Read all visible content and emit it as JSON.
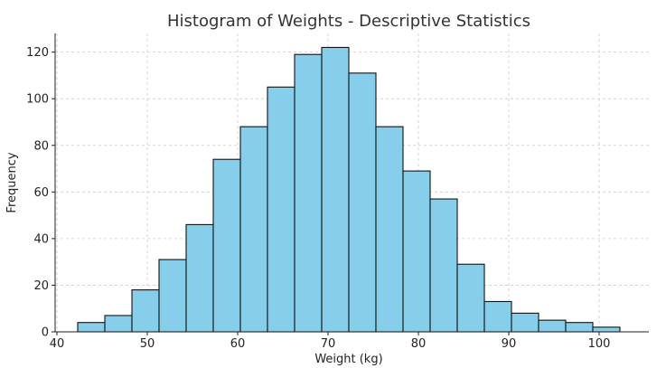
{
  "chart_data": {
    "type": "bar",
    "title": "Histogram of Weights - Descriptive Statistics",
    "xlabel": "Weight (kg)",
    "ylabel": "Frequency",
    "xlim": [
      39.8,
      105.5
    ],
    "ylim": [
      0,
      128
    ],
    "xticks": [
      40,
      50,
      60,
      70,
      80,
      90,
      100
    ],
    "yticks": [
      0,
      20,
      40,
      60,
      80,
      100,
      120
    ],
    "grid": true,
    "bar_color": "#87ceeb",
    "bins": [
      {
        "start": 42.3,
        "end": 45.3,
        "count": 4
      },
      {
        "start": 45.3,
        "end": 48.3,
        "count": 7
      },
      {
        "start": 48.3,
        "end": 51.3,
        "count": 18
      },
      {
        "start": 51.3,
        "end": 54.3,
        "count": 31
      },
      {
        "start": 54.3,
        "end": 57.3,
        "count": 46
      },
      {
        "start": 57.3,
        "end": 60.3,
        "count": 74
      },
      {
        "start": 60.3,
        "end": 63.3,
        "count": 88
      },
      {
        "start": 63.3,
        "end": 66.3,
        "count": 105
      },
      {
        "start": 66.3,
        "end": 69.3,
        "count": 119
      },
      {
        "start": 69.3,
        "end": 72.3,
        "count": 122
      },
      {
        "start": 72.3,
        "end": 75.3,
        "count": 111
      },
      {
        "start": 75.3,
        "end": 78.3,
        "count": 88
      },
      {
        "start": 78.3,
        "end": 81.3,
        "count": 69
      },
      {
        "start": 81.3,
        "end": 84.3,
        "count": 57
      },
      {
        "start": 84.3,
        "end": 87.3,
        "count": 29
      },
      {
        "start": 87.3,
        "end": 90.3,
        "count": 13
      },
      {
        "start": 90.3,
        "end": 93.3,
        "count": 8
      },
      {
        "start": 93.3,
        "end": 96.3,
        "count": 5
      },
      {
        "start": 96.3,
        "end": 99.3,
        "count": 4
      },
      {
        "start": 99.3,
        "end": 102.3,
        "count": 2
      }
    ]
  }
}
